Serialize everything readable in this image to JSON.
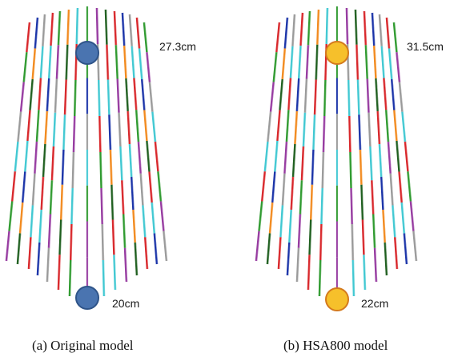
{
  "panels": [
    {
      "id": "a",
      "caption": "(a)  Original  model",
      "top_label": "27.3cm",
      "bottom_label": "20cm",
      "node_fill": "#4a74b0",
      "node_stroke": "#2f5489"
    },
    {
      "id": "b",
      "caption": "(b)  HSA800  model",
      "top_label": "31.5cm",
      "bottom_label": "22cm",
      "node_fill": "#f6c02b",
      "node_stroke": "#d47a1d"
    }
  ],
  "segment_colors": {
    "red": "#d8262a",
    "cyan": "#40c8d2",
    "green": "#2f9a2f",
    "blue": "#1a33a8",
    "purple": "#963aa0",
    "orange": "#f28a1e",
    "gray": "#9a9a9a",
    "dark_green": "#1f5f1f"
  }
}
